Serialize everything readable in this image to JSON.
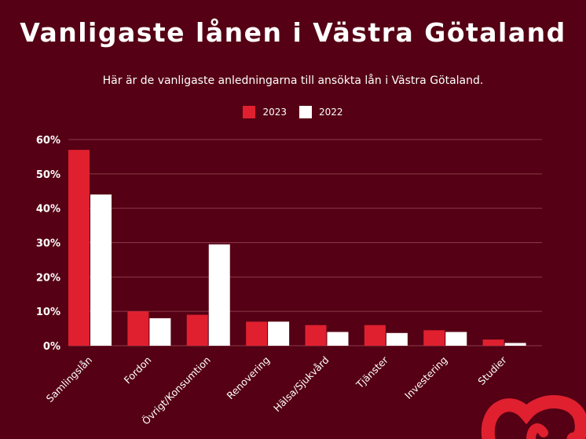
{
  "header": {
    "title": "Vanligaste lånen i Västra Götaland",
    "subtitle": "Här är de vanligaste anledningarna till ansökta lån i Västra Götaland."
  },
  "colors": {
    "background": "#550014",
    "series_2023": "#e0202f",
    "series_2022": "#ffffff",
    "grid": "#8a3a4a"
  },
  "chart_data": {
    "type": "bar",
    "categories": [
      "Samlingslån",
      "Fordon",
      "Övrigt/Konsumtion",
      "Renovering",
      "Hälsa/Sjukvård",
      "Tjänster",
      "Investering",
      "Studier"
    ],
    "series": [
      {
        "name": "2023",
        "values": [
          57,
          10,
          9,
          7,
          6,
          6,
          4.5,
          1.8
        ]
      },
      {
        "name": "2022",
        "values": [
          44,
          8,
          29.5,
          7,
          4,
          3.7,
          4,
          0.8
        ]
      }
    ],
    "yticks": [
      "0%",
      "10%",
      "20%",
      "30%",
      "40%",
      "50%",
      "60%"
    ],
    "ylim": [
      0,
      60
    ],
    "grid": true,
    "legend_position": "top-center"
  }
}
